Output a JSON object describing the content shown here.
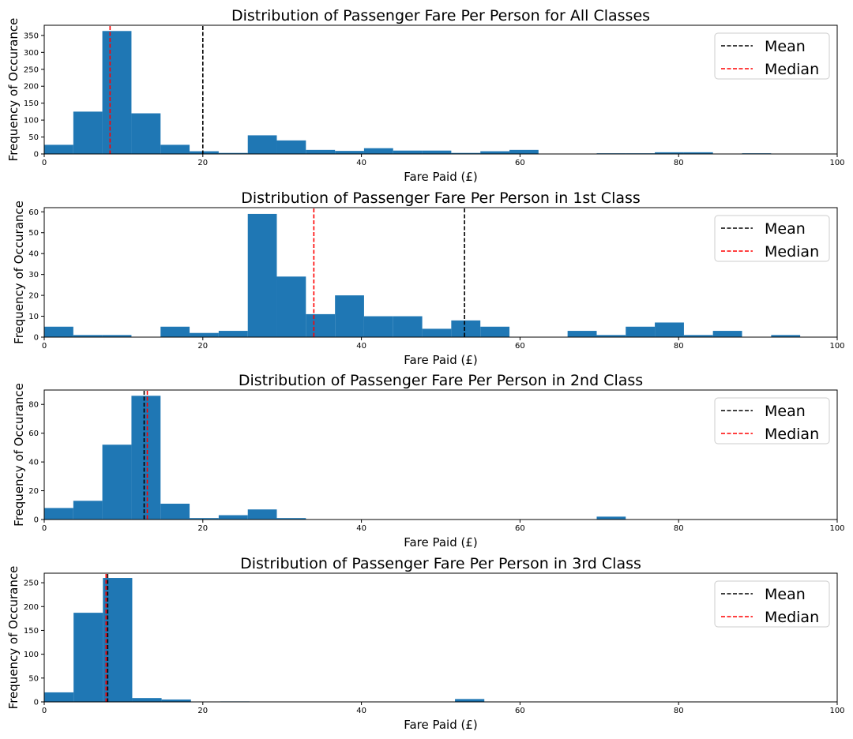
{
  "chart_data": [
    {
      "type": "bar",
      "title": "Distribution of Passenger Fare Per Person for All Classes",
      "xlabel": "Fare Paid (£)",
      "ylabel": "Frequency of Occurance",
      "xlim": [
        0,
        100
      ],
      "ylim": [
        0,
        380
      ],
      "xticks": [
        0,
        20,
        40,
        60,
        80,
        100
      ],
      "yticks": [
        0,
        50,
        100,
        150,
        200,
        250,
        300,
        350
      ],
      "bin_edges": [
        0,
        3.67,
        7.33,
        11,
        14.67,
        18.33,
        22,
        25.67,
        29.33,
        33,
        36.67,
        40.33,
        44,
        47.67,
        51.33,
        55,
        58.67,
        62.33,
        66,
        69.67,
        73.33,
        77,
        80.67,
        84.33,
        88,
        91.67,
        95.33,
        99
      ],
      "values": [
        27,
        125,
        363,
        120,
        27,
        8,
        3,
        55,
        40,
        12,
        9,
        17,
        10,
        10,
        3,
        8,
        12,
        0,
        0,
        2,
        2,
        5,
        5,
        0,
        2,
        0,
        0
      ],
      "mean": 20,
      "median": 8.3,
      "legend": {
        "position": "top-right",
        "entries": [
          {
            "label": "Mean",
            "color": "#000000"
          },
          {
            "label": "Median",
            "color": "#ff0000"
          }
        ]
      },
      "bar_color": "#1f77b4",
      "grid": false
    },
    {
      "type": "bar",
      "title": "Distribution of Passenger Fare Per Person in 1st Class",
      "xlabel": "Fare Paid (£)",
      "ylabel": "Frequency of Occurance",
      "xlim": [
        0,
        100
      ],
      "ylim": [
        0,
        62
      ],
      "xticks": [
        0,
        20,
        40,
        60,
        80,
        100
      ],
      "yticks": [
        0,
        10,
        20,
        30,
        40,
        50,
        60
      ],
      "bin_edges": [
        0,
        3.67,
        7.33,
        11,
        14.67,
        18.33,
        22,
        25.67,
        29.33,
        33,
        36.67,
        40.33,
        44,
        47.67,
        51.33,
        55,
        58.67,
        62.33,
        66,
        69.67,
        73.33,
        77,
        80.67,
        84.33,
        88,
        91.67,
        95.33
      ],
      "values": [
        5,
        1,
        1,
        0,
        5,
        2,
        3,
        59,
        29,
        11,
        20,
        10,
        10,
        4,
        8,
        5,
        0,
        0,
        3,
        1,
        5,
        7,
        1,
        3,
        0,
        1
      ],
      "mean": 53,
      "median": 34,
      "legend": {
        "position": "top-right",
        "entries": [
          {
            "label": "Mean",
            "color": "#000000"
          },
          {
            "label": "Median",
            "color": "#ff0000"
          }
        ]
      },
      "bar_color": "#1f77b4",
      "grid": false
    },
    {
      "type": "bar",
      "title": "Distribution of Passenger Fare Per Person in 2nd Class",
      "xlabel": "Fare Paid (£)",
      "ylabel": "Frequency of Occurance",
      "xlim": [
        0,
        100
      ],
      "ylim": [
        0,
        90
      ],
      "xticks": [
        0,
        20,
        40,
        60,
        80,
        100
      ],
      "yticks": [
        0,
        20,
        40,
        60,
        80
      ],
      "bin_edges": [
        0,
        3.67,
        7.33,
        11,
        14.67,
        18.33,
        22,
        25.67,
        29.33,
        33,
        36.67,
        40.33,
        44,
        47.67,
        51.33,
        55,
        58.67,
        62.33,
        66,
        69.67,
        73.33
      ],
      "values": [
        8,
        13,
        52,
        86,
        11,
        1,
        3,
        7,
        1,
        0,
        0,
        0,
        0,
        0,
        0,
        0,
        0,
        0,
        0,
        2
      ],
      "mean": 12.6,
      "median": 13,
      "legend": {
        "position": "top-right",
        "entries": [
          {
            "label": "Mean",
            "color": "#000000"
          },
          {
            "label": "Median",
            "color": "#ff0000"
          }
        ]
      },
      "bar_color": "#1f77b4",
      "grid": false
    },
    {
      "type": "bar",
      "title": "Distribution of Passenger Fare Per Person in 3rd Class",
      "xlabel": "Fare Paid (£)",
      "ylabel": "Frequency of Occurance",
      "xlim": [
        0,
        100
      ],
      "ylim": [
        0,
        270
      ],
      "xticks": [
        0,
        20,
        40,
        60,
        80,
        100
      ],
      "yticks": [
        0,
        50,
        100,
        150,
        200,
        250
      ],
      "bin_edges": [
        0,
        3.7,
        7.4,
        11.1,
        14.8,
        18.5,
        22.2,
        25.9,
        29.6,
        33.3,
        37,
        40.7,
        44.4,
        48.1,
        51.8,
        55.5
      ],
      "values": [
        20,
        187,
        260,
        8,
        5,
        0,
        1,
        0,
        0,
        0,
        0,
        0,
        0,
        0,
        6
      ],
      "mean": 8,
      "median": 7.8,
      "legend": {
        "position": "top-right",
        "entries": [
          {
            "label": "Mean",
            "color": "#000000"
          },
          {
            "label": "Median",
            "color": "#ff0000"
          }
        ]
      },
      "bar_color": "#1f77b4",
      "grid": false
    }
  ]
}
